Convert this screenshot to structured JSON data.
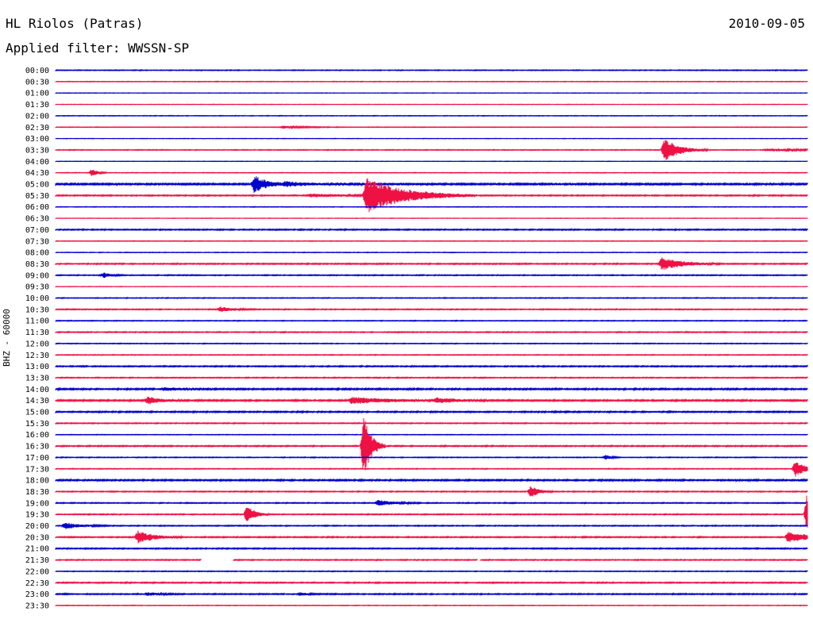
{
  "header": {
    "station": "HL Riolos (Patras)",
    "date": "2010-09-05",
    "filter": "Applied filter: WWSSN-SP"
  },
  "colors": {
    "odd_trace": "#0000cc",
    "even_trace": "#ee1144",
    "background": "#ffffff"
  },
  "chart_data": {
    "type": "line",
    "title": "HL Riolos (Patras)",
    "subtitle": "Applied filter: WWSSN-SP",
    "date": "2010-09-05",
    "ylabel": "BHZ - 60000",
    "grid": false,
    "legend": "none",
    "x_unit": "minutes into trace (0–30)",
    "tick_labels": [
      "00:00",
      "00:30",
      "01:00",
      "01:30",
      "02:00",
      "02:30",
      "03:00",
      "03:30",
      "04:00",
      "04:30",
      "05:00",
      "05:30",
      "06:00",
      "06:30",
      "07:00",
      "07:30",
      "08:00",
      "08:30",
      "09:00",
      "09:30",
      "10:00",
      "10:30",
      "11:00",
      "11:30",
      "12:00",
      "12:30",
      "13:00",
      "13:30",
      "14:00",
      "14:30",
      "15:00",
      "15:30",
      "16:00",
      "16:30",
      "17:00",
      "17:30",
      "18:00",
      "18:30",
      "19:00",
      "19:30",
      "20:00",
      "20:30",
      "21:00",
      "21:30",
      "22:00",
      "22:30",
      "23:00",
      "23:30"
    ],
    "series_colors": [
      "#0000cc",
      "#ee1144"
    ],
    "noise_level": [
      0.4,
      0.3,
      0.2,
      0.2,
      0.3,
      0.3,
      0.2,
      0.4,
      0.2,
      0.3,
      0.9,
      0.6,
      0.3,
      0.2,
      0.6,
      0.3,
      0.3,
      0.6,
      0.5,
      0.2,
      0.4,
      0.5,
      0.4,
      0.5,
      0.4,
      0.4,
      0.6,
      0.5,
      0.8,
      0.8,
      0.7,
      0.5,
      0.3,
      0.6,
      0.4,
      0.4,
      0.8,
      0.5,
      0.5,
      0.5,
      0.5,
      0.6,
      0.6,
      0.5,
      0.4,
      0.6,
      0.6,
      0.3
    ],
    "events": [
      {
        "trace": "02:30",
        "minute": 9.4,
        "amplitude": 1.5,
        "duration": 0.8
      },
      {
        "trace": "03:30",
        "minute": 25.1,
        "amplitude": 14,
        "duration": 0.6
      },
      {
        "trace": "03:30",
        "minute": 29.3,
        "amplitude": 1.5,
        "duration": 1.5
      },
      {
        "trace": "04:30",
        "minute": 1.5,
        "amplitude": 5,
        "duration": 0.2
      },
      {
        "trace": "05:00",
        "minute": 8.2,
        "amplitude": 11,
        "duration": 0.5
      },
      {
        "trace": "05:00",
        "minute": 9.5,
        "amplitude": 2.5,
        "duration": 1.2
      },
      {
        "trace": "05:30",
        "minute": 10.5,
        "amplitude": 2,
        "duration": 1.5
      },
      {
        "trace": "05:30",
        "minute": 12.8,
        "amplitude": 22,
        "duration": 1.5
      },
      {
        "trace": "08:30",
        "minute": 25.0,
        "amplitude": 8,
        "duration": 0.8
      },
      {
        "trace": "09:00",
        "minute": 2.0,
        "amplitude": 3,
        "duration": 0.3
      },
      {
        "trace": "10:30",
        "minute": 6.8,
        "amplitude": 3,
        "duration": 0.5
      },
      {
        "trace": "14:00",
        "minute": 4.5,
        "amplitude": 2,
        "duration": 0.8
      },
      {
        "trace": "14:30",
        "minute": 3.8,
        "amplitude": 5,
        "duration": 0.5
      },
      {
        "trace": "14:30",
        "minute": 12.2,
        "amplitude": 4,
        "duration": 1.5
      },
      {
        "trace": "14:30",
        "minute": 15.7,
        "amplitude": 3,
        "duration": 0.8
      },
      {
        "trace": "16:30",
        "minute": 12.7,
        "amplitude": 40,
        "duration": 0.3
      },
      {
        "trace": "17:00",
        "minute": 22.7,
        "amplitude": 3,
        "duration": 0.2
      },
      {
        "trace": "17:30",
        "minute": 30.5,
        "amplitude": 10,
        "duration": 0.4
      },
      {
        "trace": "18:30",
        "minute": 19.6,
        "amplitude": 8,
        "duration": 0.3
      },
      {
        "trace": "19:00",
        "minute": 13.3,
        "amplitude": 4,
        "duration": 0.6
      },
      {
        "trace": "19:30",
        "minute": 7.9,
        "amplitude": 12,
        "duration": 0.3
      },
      {
        "trace": "19:30",
        "minute": 31.0,
        "amplitude": 30,
        "duration": 0.6
      },
      {
        "trace": "20:00",
        "minute": 0.4,
        "amplitude": 4,
        "duration": 0.6
      },
      {
        "trace": "20:30",
        "minute": 3.4,
        "amplitude": 8,
        "duration": 0.6
      },
      {
        "trace": "20:30",
        "minute": 30.2,
        "amplitude": 6,
        "duration": 1.0
      },
      {
        "trace": "23:00",
        "minute": 3.8,
        "amplitude": 2,
        "duration": 0.5
      },
      {
        "trace": "23:00",
        "minute": 10.1,
        "amplitude": 2,
        "duration": 0.3
      }
    ],
    "gaps": [
      {
        "trace": "21:30",
        "start_minute": 6.0,
        "end_minute": 7.3
      },
      {
        "trace": "21:30",
        "start_minute": 17.4,
        "end_minute": 17.5
      }
    ]
  }
}
